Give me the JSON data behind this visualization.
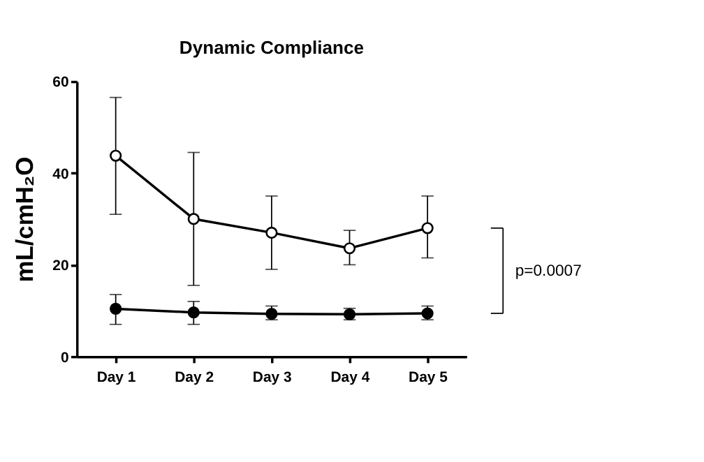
{
  "chart_data": {
    "type": "line",
    "title": "Dynamic Compliance",
    "ylabel": "mL/cmH₂O",
    "categories": [
      "Day 1",
      "Day 2",
      "Day 3",
      "Day 4",
      "Day 5"
    ],
    "series": [
      {
        "color": "#000000",
        "values": [
          43.8,
          30,
          27,
          23.6,
          28
        ],
        "errors": [
          [
            31,
            56.5
          ],
          [
            15.5,
            44.5
          ],
          [
            19,
            35
          ],
          [
            20,
            27.5
          ],
          [
            21.5,
            35
          ]
        ]
      },
      {
        "color": "#000000",
        "values": [
          10.4,
          9.6,
          9.3,
          9.2,
          9.4
        ],
        "errors": [
          [
            7,
            13.5
          ],
          [
            7,
            12
          ],
          [
            8,
            11
          ],
          [
            8,
            10.5
          ],
          [
            8,
            11
          ]
        ]
      }
    ],
    "ylim": [
      0,
      60
    ],
    "yticks": [
      0,
      20,
      40,
      60
    ],
    "grid": false,
    "marker": "circle",
    "line_style": "solid",
    "annotations": [
      "p=0.0007"
    ]
  }
}
